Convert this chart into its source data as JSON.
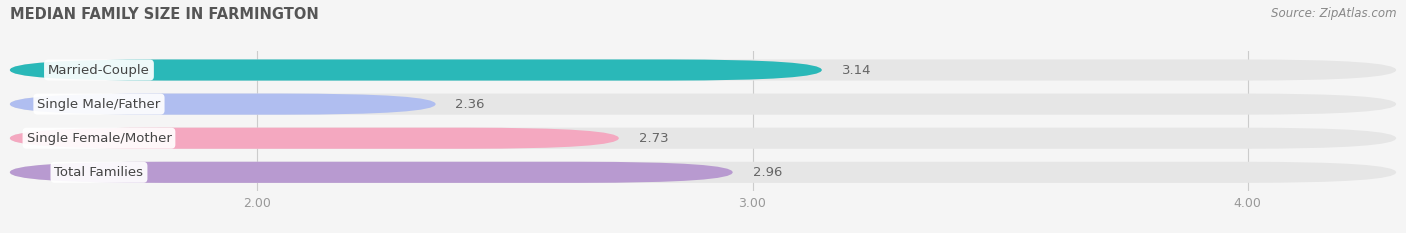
{
  "title": "MEDIAN FAMILY SIZE IN FARMINGTON",
  "source": "Source: ZipAtlas.com",
  "categories": [
    "Married-Couple",
    "Single Male/Father",
    "Single Female/Mother",
    "Total Families"
  ],
  "values": [
    3.14,
    2.36,
    2.73,
    2.96
  ],
  "colors": [
    "#2ab8b8",
    "#b0bef0",
    "#f4a8c0",
    "#b89ad0"
  ],
  "xmin": 1.5,
  "xmax": 4.3,
  "xticks": [
    2.0,
    3.0,
    4.0
  ],
  "bar_height": 0.62,
  "background_color": "#f5f5f5",
  "bar_bg_color": "#e6e6e6",
  "label_fontsize": 9.5,
  "value_fontsize": 9.5,
  "title_fontsize": 10.5
}
